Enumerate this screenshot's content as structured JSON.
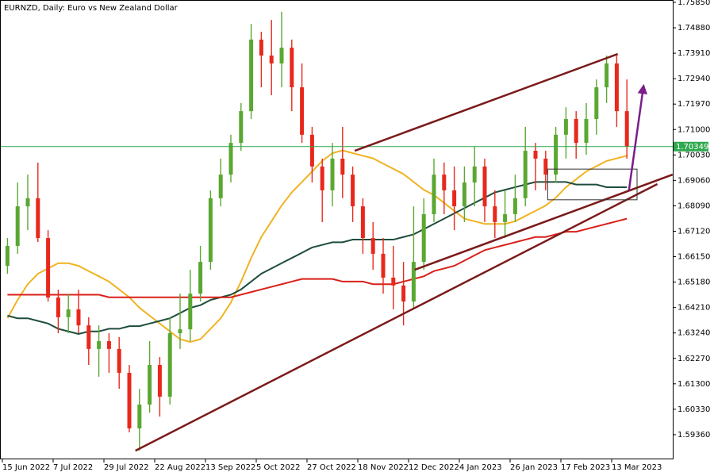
{
  "chart_data": {
    "type": "candlestick",
    "title": "EURNZD, Daily:  Euro vs New Zealand Dollar",
    "categories": [
      "15 Jun 2022",
      null,
      null,
      null,
      null,
      "7 Jul 2022",
      null,
      null,
      null,
      null,
      "29 Jul 2022",
      null,
      null,
      null,
      null,
      "22 Aug 2022",
      null,
      null,
      null,
      null,
      "13 Sep 2022",
      null,
      null,
      null,
      null,
      "5 Oct 2022",
      null,
      null,
      null,
      null,
      "27 Oct 2022",
      null,
      null,
      null,
      null,
      "18 Nov 2022",
      null,
      null,
      null,
      null,
      "12 Dec 2022",
      null,
      null,
      null,
      null,
      "4 Jan 2023",
      null,
      null,
      null,
      null,
      "26 Jan 2023",
      null,
      null,
      null,
      null,
      "17 Feb 2023",
      null,
      null,
      null,
      null,
      "13 Mar 2023",
      null
    ],
    "open": [
      1.658,
      1.6656,
      1.6807,
      1.6838,
      1.6686,
      1.6459,
      1.6384,
      1.6414,
      1.6353,
      1.6263,
      1.6293,
      1.6263,
      1.6172,
      1.596,
      1.6051,
      1.6202,
      1.6081,
      1.6323,
      1.6338,
      1.6474,
      1.6595,
      1.6838,
      1.6928,
      1.7049,
      1.717,
      1.7443,
      1.7382,
      1.7352,
      1.7412,
      1.7261,
      1.708,
      1.6959,
      1.6868,
      1.6989,
      1.6928,
      1.6807,
      1.6686,
      1.6626,
      1.6535,
      1.6505,
      1.6444,
      1.6595,
      1.6777,
      1.6928,
      1.6868,
      1.6807,
      1.6898,
      1.6959,
      1.6807,
      1.6747,
      1.6777,
      1.6838,
      1.7019,
      1.6989,
      1.6928,
      1.708,
      1.714,
      1.7049,
      1.714,
      1.7261,
      1.7352,
      1.717
    ],
    "high": [
      1.6686,
      1.6898,
      1.6928,
      1.6974,
      1.6716,
      1.6489,
      1.6474,
      1.6489,
      1.6384,
      1.6353,
      1.6323,
      1.6308,
      1.6202,
      1.6111,
      1.6293,
      1.6232,
      1.6384,
      1.6474,
      1.6565,
      1.6656,
      1.6868,
      1.6989,
      1.708,
      1.7201,
      1.7503,
      1.7473,
      1.7518,
      1.7549,
      1.7443,
      1.7352,
      1.711,
      1.6989,
      1.7049,
      1.711,
      1.6959,
      1.6838,
      1.6747,
      1.6686,
      1.6656,
      1.6595,
      1.6807,
      1.6838,
      1.6989,
      1.6974,
      1.6959,
      1.6959,
      1.7034,
      1.6989,
      1.6868,
      1.6868,
      1.6928,
      1.711,
      1.7049,
      1.7019,
      1.711,
      1.7185,
      1.717,
      1.7201,
      1.7291,
      1.7382,
      1.7382,
      1.7291
    ],
    "low": [
      1.655,
      1.6626,
      1.6716,
      1.6671,
      1.6444,
      1.6323,
      1.6323,
      1.6323,
      1.6202,
      1.6157,
      1.6172,
      1.6111,
      1.5945,
      1.5875,
      1.602,
      1.6005,
      1.6051,
      1.6263,
      1.6293,
      1.6444,
      1.6565,
      1.6807,
      1.6898,
      1.7019,
      1.714,
      1.7261,
      1.7231,
      1.7261,
      1.717,
      1.7049,
      1.6898,
      1.6747,
      1.6807,
      1.6838,
      1.6747,
      1.6626,
      1.6565,
      1.6474,
      1.6414,
      1.6353,
      1.6414,
      1.6565,
      1.6747,
      1.6777,
      1.6716,
      1.6747,
      1.6807,
      1.6747,
      1.6686,
      1.6686,
      1.6747,
      1.6807,
      1.6868,
      1.6868,
      1.6898,
      1.6989,
      1.6989,
      1.7004,
      1.708,
      1.7201,
      1.711,
      1.6989
    ],
    "close": [
      1.6656,
      1.6807,
      1.6838,
      1.6686,
      1.6459,
      1.6384,
      1.6414,
      1.6353,
      1.6263,
      1.6293,
      1.6263,
      1.6172,
      1.596,
      1.6051,
      1.6202,
      1.6081,
      1.6323,
      1.6338,
      1.6474,
      1.6595,
      1.6838,
      1.6928,
      1.7049,
      1.717,
      1.7443,
      1.7382,
      1.7352,
      1.7412,
      1.7261,
      1.708,
      1.6959,
      1.6868,
      1.6989,
      1.6928,
      1.6807,
      1.6686,
      1.6626,
      1.6535,
      1.6505,
      1.6444,
      1.6595,
      1.6777,
      1.6928,
      1.6868,
      1.6807,
      1.6898,
      1.6959,
      1.6807,
      1.6747,
      1.6777,
      1.6838,
      1.7019,
      1.6989,
      1.6928,
      1.708,
      1.714,
      1.7049,
      1.714,
      1.7261,
      1.7352,
      1.717,
      1.70349
    ],
    "up_color": "#5aa832",
    "down_color": "#e8281c",
    "series": [
      {
        "color": "#f0b323",
        "values": [
          1.638,
          1.645,
          1.651,
          1.655,
          1.657,
          1.659,
          1.659,
          1.658,
          1.656,
          1.654,
          1.652,
          1.649,
          1.646,
          1.642,
          1.639,
          1.636,
          1.633,
          1.63,
          1.629,
          1.63,
          1.634,
          1.638,
          1.644,
          1.652,
          1.661,
          1.669,
          1.675,
          1.681,
          1.686,
          1.69,
          1.694,
          1.698,
          1.701,
          1.702,
          1.701,
          1.7,
          1.699,
          1.697,
          1.695,
          1.693,
          1.69,
          1.687,
          1.685,
          1.682,
          1.679,
          1.676,
          1.675,
          1.674,
          1.674,
          1.674,
          1.675,
          1.677,
          1.679,
          1.681,
          1.684,
          1.688,
          1.691,
          1.694,
          1.696,
          1.698,
          1.699,
          1.7
        ]
      },
      {
        "color": "#1e4d3c",
        "values": [
          1.639,
          1.638,
          1.638,
          1.637,
          1.636,
          1.634,
          1.633,
          1.632,
          1.633,
          1.633,
          1.634,
          1.634,
          1.635,
          1.635,
          1.636,
          1.637,
          1.638,
          1.64,
          1.642,
          1.643,
          1.645,
          1.646,
          1.647,
          1.649,
          1.652,
          1.655,
          1.657,
          1.659,
          1.661,
          1.663,
          1.665,
          1.666,
          1.667,
          1.667,
          1.668,
          1.668,
          1.668,
          1.668,
          1.668,
          1.669,
          1.67,
          1.672,
          1.674,
          1.676,
          1.678,
          1.68,
          1.682,
          1.684,
          1.686,
          1.687,
          1.688,
          1.689,
          1.69,
          1.69,
          1.69,
          1.69,
          1.689,
          1.689,
          1.689,
          1.688,
          1.688,
          1.688
        ]
      },
      {
        "color": "#d9201a",
        "values": [
          1.647,
          1.647,
          1.647,
          1.647,
          1.647,
          1.647,
          1.647,
          1.647,
          1.647,
          1.647,
          1.646,
          1.646,
          1.646,
          1.646,
          1.646,
          1.646,
          1.646,
          1.646,
          1.646,
          1.646,
          1.646,
          1.646,
          1.646,
          1.647,
          1.648,
          1.649,
          1.65,
          1.651,
          1.652,
          1.653,
          1.653,
          1.653,
          1.653,
          1.652,
          1.652,
          1.652,
          1.651,
          1.651,
          1.651,
          1.652,
          1.653,
          1.654,
          1.656,
          1.657,
          1.658,
          1.66,
          1.662,
          1.664,
          1.665,
          1.666,
          1.667,
          1.668,
          1.669,
          1.669,
          1.67,
          1.671,
          1.671,
          1.672,
          1.673,
          1.674,
          1.675,
          1.676
        ]
      }
    ],
    "trendlines": [
      {
        "color": "#7b1a1a",
        "x": [
          12.6,
          64.0
        ],
        "values": [
          1.5875,
          1.6892
        ]
      },
      {
        "color": "#7b1a1a",
        "x": [
          40.1,
          65.5
        ],
        "values": [
          1.6565,
          1.6928
        ]
      },
      {
        "color": "#7b1a1a",
        "x": [
          34.2,
          60.1
        ],
        "values": [
          1.7019,
          1.7388
        ]
      }
    ],
    "arrow": {
      "color": "#7a1e8a",
      "x": [
        61.2,
        62.6
      ],
      "values": [
        1.6868,
        1.7255
      ]
    },
    "box": {
      "x": [
        53.2,
        62.0
      ],
      "values": [
        1.6949,
        1.6832
      ]
    },
    "current_price": 1.70349,
    "current_price_color": "#2fa84f",
    "ylim": [
      1.5845,
      1.7594
    ],
    "yticks": [
      {
        "value": 1.7585,
        "label": "1.75850"
      },
      {
        "value": 1.7488,
        "label": "1.74880"
      },
      {
        "value": 1.7391,
        "label": "1.73910"
      },
      {
        "value": 1.7294,
        "label": "1.72940"
      },
      {
        "value": 1.7197,
        "label": "1.71970"
      },
      {
        "value": 1.71,
        "label": "1.71000"
      },
      {
        "value": 1.7003,
        "label": "1.70030"
      },
      {
        "value": 1.6906,
        "label": "1.69060"
      },
      {
        "value": 1.6809,
        "label": "1.68090"
      },
      {
        "value": 1.6712,
        "label": "1.67120"
      },
      {
        "value": 1.6615,
        "label": "1.66150"
      },
      {
        "value": 1.6518,
        "label": "1.65180"
      },
      {
        "value": 1.6421,
        "label": "1.64210"
      },
      {
        "value": 1.6324,
        "label": "1.63240"
      },
      {
        "value": 1.6227,
        "label": "1.62270"
      },
      {
        "value": 1.613,
        "label": "1.61300"
      },
      {
        "value": 1.6033,
        "label": "1.60330"
      },
      {
        "value": 1.5936,
        "label": "1.59360"
      }
    ]
  }
}
